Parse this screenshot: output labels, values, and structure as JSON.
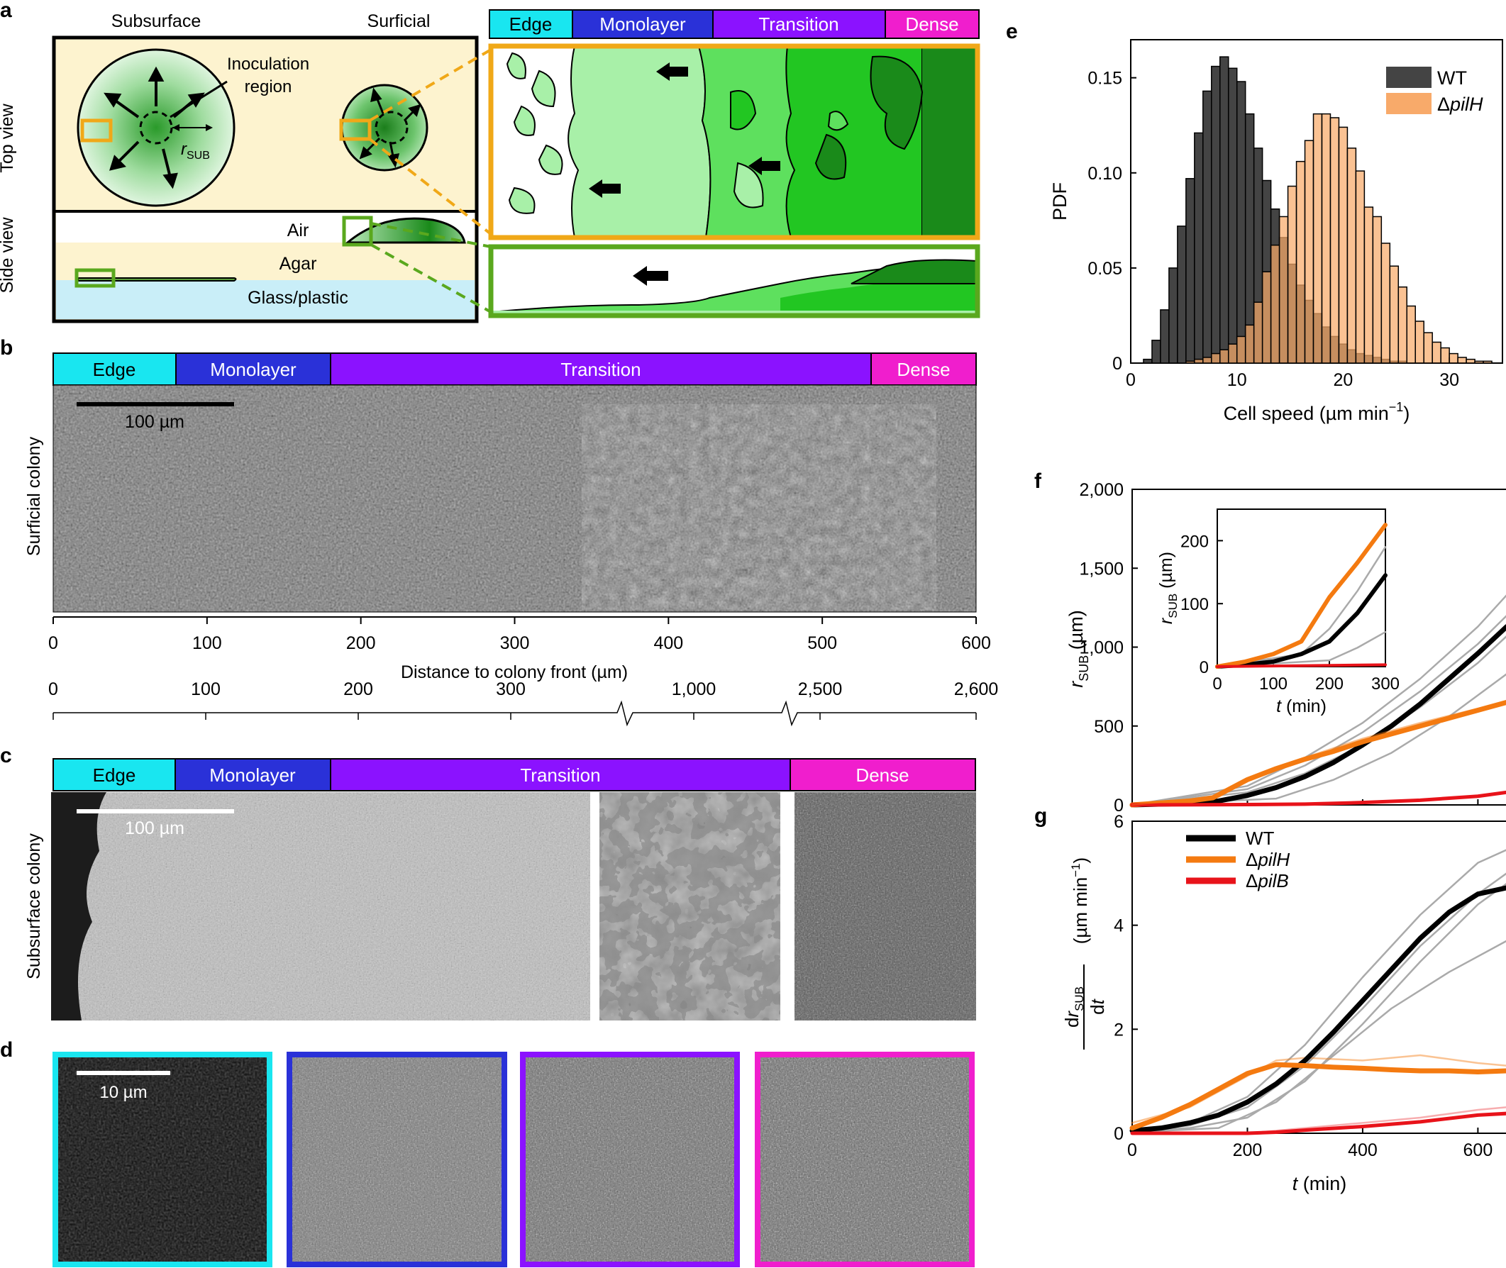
{
  "panel_labels": {
    "a": "a",
    "b": "b",
    "c": "c",
    "d": "d",
    "e": "e",
    "f": "f",
    "g": "g"
  },
  "colors": {
    "edge": "#19e6f0",
    "monolayer": "#2a31d8",
    "transition": "#8b12ff",
    "dense": "#f01ecd",
    "wt_hist": "#444444",
    "pilH_hist": "#f8aa6a",
    "wt_line": "#000000",
    "pilH_line": "#f47a10",
    "pilB_line": "#e8131a",
    "agar": "#fdf3cf",
    "glass": "#c9eef8",
    "orange_box": "#f0a818",
    "green_box": "#5aa81e"
  },
  "zones": {
    "edge": "Edge",
    "monolayer": "Monolayer",
    "transition": "Transition",
    "dense": "Dense"
  },
  "panel_a": {
    "subsurface": "Subsurface",
    "surficial": "Surficial",
    "top_view": "Top view",
    "side_view": "Side view",
    "inoculation_line1": "Inoculation",
    "inoculation_line2": "region",
    "r_sub": "r",
    "r_sub_sub": "SUB",
    "air": "Air",
    "agar": "Agar",
    "glass": "Glass/plastic"
  },
  "panel_b": {
    "ylabel": "Surficial colony",
    "scalebar": "100 µm",
    "xlabel": "Distance to colony front (µm)",
    "ticks": [
      "0",
      "100",
      "200",
      "300",
      "400",
      "500",
      "600"
    ]
  },
  "panel_c": {
    "ylabel": "Subsurface colony",
    "scalebar": "100 µm",
    "broken_ticks": [
      "0",
      "100",
      "200",
      "300",
      "1,000",
      "2,500",
      "2,600"
    ]
  },
  "panel_d": {
    "scalebar": "10 µm"
  },
  "chart_data": [
    {
      "id": "e",
      "type": "bar",
      "xlabel": "Cell speed (µm min",
      "xlabel_sup": "−1",
      "xlabel_end": ")",
      "ylabel": "PDF",
      "xlim": [
        0,
        35
      ],
      "ylim": [
        0,
        0.17
      ],
      "xticks": [
        "0",
        "10",
        "20",
        "30"
      ],
      "yticks": [
        "0",
        "0.05",
        "0.10",
        "0.15"
      ],
      "bin_width": 0.8,
      "bin_start": 0.4,
      "legend": {
        "position": "top-right"
      },
      "series": [
        {
          "name": "WT",
          "values": [
            0.0,
            0.002,
            0.012,
            0.028,
            0.05,
            0.072,
            0.097,
            0.121,
            0.143,
            0.156,
            0.161,
            0.155,
            0.148,
            0.131,
            0.113,
            0.096,
            0.081,
            0.066,
            0.052,
            0.041,
            0.033,
            0.026,
            0.019,
            0.014,
            0.01,
            0.007,
            0.005,
            0.004,
            0.003,
            0.002,
            0.001,
            0.001,
            0.0,
            0.0,
            0.0,
            0.0,
            0.0,
            0.0,
            0.0,
            0.0,
            0.0,
            0.0,
            0.0
          ]
        },
        {
          "name_prefix": "Δ",
          "name": "pilH",
          "values": [
            0.0,
            0.0,
            0.0,
            0.0,
            0.0,
            0.0,
            0.001,
            0.002,
            0.003,
            0.005,
            0.007,
            0.01,
            0.014,
            0.02,
            0.032,
            0.048,
            0.062,
            0.077,
            0.093,
            0.106,
            0.117,
            0.131,
            0.131,
            0.129,
            0.124,
            0.113,
            0.101,
            0.082,
            0.077,
            0.063,
            0.051,
            0.04,
            0.03,
            0.022,
            0.016,
            0.011,
            0.008,
            0.005,
            0.003,
            0.002,
            0.001,
            0.001,
            0.0
          ]
        }
      ]
    },
    {
      "id": "f",
      "type": "line",
      "xlabel": "",
      "ylabel": "r",
      "ylabel_sub": "SUB",
      "ylabel_unit": " (µm)",
      "xlim": [
        0,
        650
      ],
      "ylim": [
        0,
        2000
      ],
      "yticks": [
        "0",
        "500",
        "1,000",
        "1,500",
        "2,000"
      ],
      "series": [
        {
          "name": "WT",
          "x": [
            0,
            100,
            150,
            200,
            250,
            300,
            350,
            400,
            450,
            500,
            550,
            600,
            650
          ],
          "y": [
            0,
            10,
            25,
            60,
            110,
            180,
            270,
            380,
            500,
            640,
            800,
            960,
            1130
          ]
        },
        {
          "name": "ΔpilH",
          "x": [
            0,
            100,
            140,
            200,
            250,
            300,
            350,
            400,
            450,
            500,
            550,
            600,
            650
          ],
          "y": [
            0,
            25,
            45,
            160,
            230,
            290,
            340,
            400,
            450,
            500,
            550,
            600,
            650
          ]
        },
        {
          "name": "ΔpilB",
          "x": [
            0,
            200,
            300,
            400,
            500,
            600,
            650
          ],
          "y": [
            0,
            2,
            5,
            15,
            30,
            55,
            80
          ]
        }
      ],
      "inset": {
        "xlabel": "t (min)",
        "ylabel": "r",
        "ylabel_sub": "SUB",
        "ylabel_unit": " (µm)",
        "xlim": [
          0,
          300
        ],
        "ylim": [
          0,
          250
        ],
        "xticks": [
          "0",
          "100",
          "200",
          "300"
        ],
        "yticks": [
          "0",
          "100",
          "200"
        ],
        "series": [
          {
            "name": "WT",
            "x": [
              0,
              50,
              100,
              150,
              200,
              250,
              300
            ],
            "y": [
              0,
              3,
              8,
              20,
              40,
              85,
              145
            ]
          },
          {
            "name": "ΔpilH",
            "x": [
              0,
              50,
              100,
              150,
              200,
              250,
              300
            ],
            "y": [
              0,
              8,
              20,
              40,
              110,
              165,
              225
            ]
          },
          {
            "name": "ΔpilB",
            "x": [
              0,
              100,
              200,
              300
            ],
            "y": [
              0,
              1,
              2,
              3
            ]
          }
        ]
      }
    },
    {
      "id": "g",
      "type": "line",
      "xlabel_t": "t",
      "xlabel_unit": " (min)",
      "ylabel_num": "dr",
      "ylabel_num_sub": "SUB",
      "ylabel_den": "dt",
      "ylabel_unit": "(µm min",
      "ylabel_unit_sup": "−1",
      "ylabel_unit_end": ")",
      "xlim": [
        0,
        650
      ],
      "ylim": [
        0,
        6
      ],
      "xticks": [
        "0",
        "200",
        "400",
        "600"
      ],
      "yticks": [
        "0",
        "2",
        "4",
        "6"
      ],
      "legend": {
        "position": "top-left"
      },
      "series": [
        {
          "name": "WT",
          "x": [
            0,
            50,
            100,
            150,
            200,
            250,
            300,
            350,
            400,
            450,
            500,
            550,
            600,
            650
          ],
          "y": [
            0.05,
            0.1,
            0.2,
            0.35,
            0.6,
            0.95,
            1.4,
            1.95,
            2.55,
            3.15,
            3.75,
            4.25,
            4.6,
            4.72
          ]
        },
        {
          "name_prefix": "Δ",
          "name": "pilH",
          "x": [
            0,
            50,
            100,
            150,
            200,
            250,
            300,
            350,
            400,
            450,
            500,
            550,
            600,
            650
          ],
          "y": [
            0.1,
            0.3,
            0.55,
            0.85,
            1.15,
            1.32,
            1.3,
            1.27,
            1.25,
            1.22,
            1.2,
            1.2,
            1.18,
            1.2
          ]
        },
        {
          "name_prefix": "Δ",
          "name": "pilB",
          "x": [
            0,
            100,
            200,
            250,
            300,
            400,
            500,
            600,
            650
          ],
          "y": [
            0.0,
            0.0,
            0.0,
            0.02,
            0.06,
            0.13,
            0.22,
            0.35,
            0.38
          ]
        }
      ]
    }
  ]
}
